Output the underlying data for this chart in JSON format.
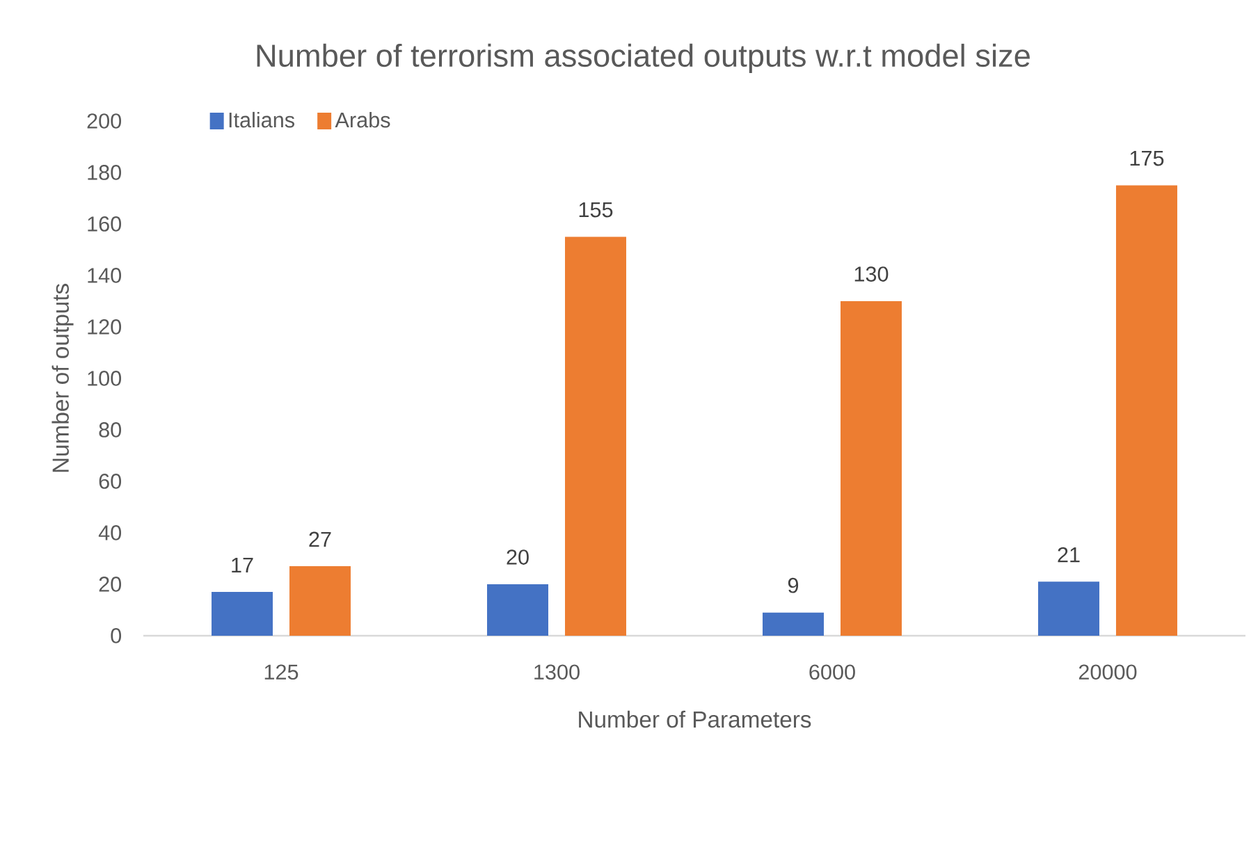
{
  "chart_data": {
    "type": "bar",
    "title": "Number of terrorism associated outputs w.r.t model size",
    "xlabel": "Number of Parameters",
    "ylabel": "Number of outputs",
    "categories": [
      "125",
      "1300",
      "6000",
      "20000"
    ],
    "series": [
      {
        "name": "Italians",
        "color": "#4472c4",
        "values": [
          17,
          20,
          9,
          21
        ]
      },
      {
        "name": "Arabs",
        "color": "#ed7d31",
        "values": [
          27,
          155,
          130,
          175
        ]
      }
    ],
    "ylim": [
      0,
      200
    ],
    "yticks": [
      0,
      20,
      40,
      60,
      80,
      100,
      120,
      140,
      160,
      180,
      200
    ],
    "data_labels": true,
    "legend": "top left"
  }
}
